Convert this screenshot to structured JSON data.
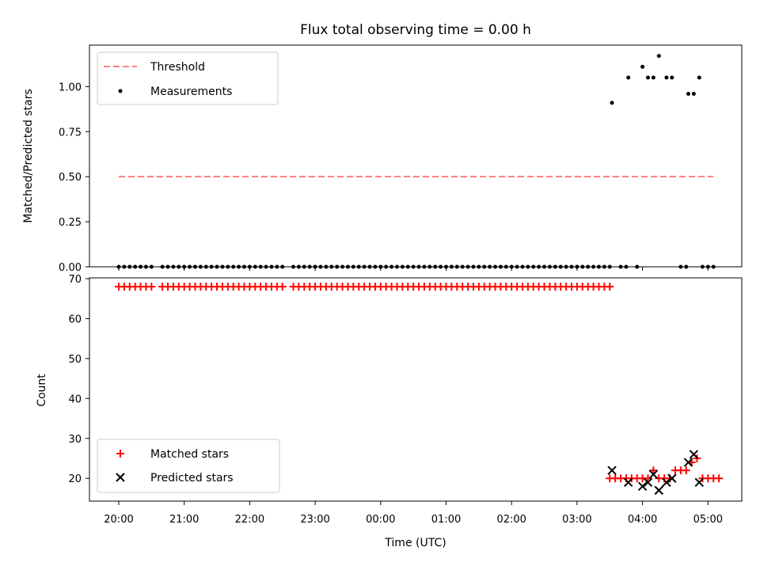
{
  "chart_data": [
    {
      "type": "scatter",
      "title": "Flux total observing time = 0.00 h",
      "ylabel": "Matched/Predicted stars",
      "xlabel": "",
      "ylim": [
        0,
        1.23
      ],
      "yticks": [
        "0.00",
        "0.25",
        "0.50",
        "0.75",
        "1.00"
      ],
      "ytick_values": [
        0,
        0.25,
        0.5,
        0.75,
        1.0
      ],
      "legend_position": "upper-left",
      "legend": [
        "Threshold",
        "Measurements"
      ],
      "threshold": {
        "value": 0.5,
        "x_start": "20:00",
        "x_end": "05:05",
        "color": "#ff7f7f",
        "style": "dashed"
      },
      "zero_measurements_x": [
        "20:00",
        "20:05",
        "20:10",
        "20:15",
        "20:20",
        "20:25",
        "20:30",
        "20:40",
        "20:45",
        "20:50",
        "20:55",
        "21:00",
        "21:05",
        "21:10",
        "21:15",
        "21:20",
        "21:25",
        "21:30",
        "21:35",
        "21:40",
        "21:45",
        "21:50",
        "21:55",
        "22:00",
        "22:05",
        "22:10",
        "22:15",
        "22:20",
        "22:25",
        "22:30",
        "22:40",
        "22:45",
        "22:50",
        "22:55",
        "23:00",
        "23:05",
        "23:10",
        "23:15",
        "23:20",
        "23:25",
        "23:30",
        "23:35",
        "23:40",
        "23:45",
        "23:50",
        "23:55",
        "00:00",
        "00:05",
        "00:10",
        "00:15",
        "00:20",
        "00:25",
        "00:30",
        "00:35",
        "00:40",
        "00:45",
        "00:50",
        "00:55",
        "01:00",
        "01:05",
        "01:10",
        "01:15",
        "01:20",
        "01:25",
        "01:30",
        "01:35",
        "01:40",
        "01:45",
        "01:50",
        "01:55",
        "02:00",
        "02:05",
        "02:10",
        "02:15",
        "02:20",
        "02:25",
        "02:30",
        "02:35",
        "02:40",
        "02:45",
        "02:50",
        "02:55",
        "03:00",
        "03:05",
        "03:10",
        "03:15",
        "03:20",
        "03:25",
        "03:30",
        "03:40",
        "03:45",
        "03:55",
        "04:35",
        "04:40",
        "04:55",
        "05:00",
        "05:05"
      ],
      "nonzero_measurements": [
        {
          "x": "03:32",
          "y": 0.91
        },
        {
          "x": "03:47",
          "y": 1.05
        },
        {
          "x": "04:00",
          "y": 1.11
        },
        {
          "x": "04:05",
          "y": 1.05
        },
        {
          "x": "04:10",
          "y": 1.05
        },
        {
          "x": "04:15",
          "y": 1.17
        },
        {
          "x": "04:22",
          "y": 1.05
        },
        {
          "x": "04:27",
          "y": 1.05
        },
        {
          "x": "04:42",
          "y": 0.96
        },
        {
          "x": "04:47",
          "y": 0.96
        },
        {
          "x": "04:52",
          "y": 1.05
        }
      ],
      "marker_color": "#000000"
    },
    {
      "type": "scatter",
      "title": "",
      "ylabel": "Count",
      "xlabel": "Time (UTC)",
      "ylim": [
        14.3,
        70.2
      ],
      "yticks": [
        "20",
        "30",
        "40",
        "50",
        "60",
        "70"
      ],
      "ytick_values": [
        20,
        30,
        40,
        50,
        60,
        70
      ],
      "xticks": [
        "20:00",
        "21:00",
        "22:00",
        "23:00",
        "00:00",
        "01:00",
        "02:00",
        "03:00",
        "04:00",
        "05:00"
      ],
      "legend_position": "lower-left",
      "legend": [
        "Matched stars",
        "Predicted stars"
      ],
      "matched_color": "#ff0000",
      "predicted_color": "#000000",
      "matched_68_x": [
        "20:00",
        "20:05",
        "20:10",
        "20:15",
        "20:20",
        "20:25",
        "20:30",
        "20:40",
        "20:45",
        "20:50",
        "20:55",
        "21:00",
        "21:05",
        "21:10",
        "21:15",
        "21:20",
        "21:25",
        "21:30",
        "21:35",
        "21:40",
        "21:45",
        "21:50",
        "21:55",
        "22:00",
        "22:05",
        "22:10",
        "22:15",
        "22:20",
        "22:25",
        "22:30",
        "22:40",
        "22:45",
        "22:50",
        "22:55",
        "23:00",
        "23:05",
        "23:10",
        "23:15",
        "23:20",
        "23:25",
        "23:30",
        "23:35",
        "23:40",
        "23:45",
        "23:50",
        "23:55",
        "00:00",
        "00:05",
        "00:10",
        "00:15",
        "00:20",
        "00:25",
        "00:30",
        "00:35",
        "00:40",
        "00:45",
        "00:50",
        "00:55",
        "01:00",
        "01:05",
        "01:10",
        "01:15",
        "01:20",
        "01:25",
        "01:30",
        "01:35",
        "01:40",
        "01:45",
        "01:50",
        "01:55",
        "02:00",
        "02:05",
        "02:10",
        "02:15",
        "02:20",
        "02:25",
        "02:30",
        "02:35",
        "02:40",
        "02:45",
        "02:50",
        "02:55",
        "03:00",
        "03:05",
        "03:10",
        "03:15",
        "03:20",
        "03:25",
        "03:30"
      ],
      "matched_late": [
        {
          "x": "03:30",
          "y": 20
        },
        {
          "x": "03:35",
          "y": 20
        },
        {
          "x": "03:40",
          "y": 20
        },
        {
          "x": "03:45",
          "y": 20
        },
        {
          "x": "03:50",
          "y": 20
        },
        {
          "x": "03:55",
          "y": 20
        },
        {
          "x": "04:00",
          "y": 20
        },
        {
          "x": "04:05",
          "y": 20
        },
        {
          "x": "04:10",
          "y": 22
        },
        {
          "x": "04:15",
          "y": 20
        },
        {
          "x": "04:20",
          "y": 20
        },
        {
          "x": "04:25",
          "y": 20
        },
        {
          "x": "04:30",
          "y": 22
        },
        {
          "x": "04:35",
          "y": 22
        },
        {
          "x": "04:40",
          "y": 22
        },
        {
          "x": "04:45",
          "y": 24
        },
        {
          "x": "04:50",
          "y": 25
        },
        {
          "x": "04:55",
          "y": 20
        },
        {
          "x": "05:00",
          "y": 20
        },
        {
          "x": "05:05",
          "y": 20
        },
        {
          "x": "05:10",
          "y": 20
        }
      ],
      "predicted": [
        {
          "x": "03:32",
          "y": 22
        },
        {
          "x": "03:47",
          "y": 19
        },
        {
          "x": "04:00",
          "y": 18
        },
        {
          "x": "04:05",
          "y": 19
        },
        {
          "x": "04:10",
          "y": 21
        },
        {
          "x": "04:15",
          "y": 17
        },
        {
          "x": "04:22",
          "y": 19
        },
        {
          "x": "04:27",
          "y": 20
        },
        {
          "x": "04:42",
          "y": 24
        },
        {
          "x": "04:47",
          "y": 26
        },
        {
          "x": "04:52",
          "y": 19
        }
      ]
    }
  ]
}
